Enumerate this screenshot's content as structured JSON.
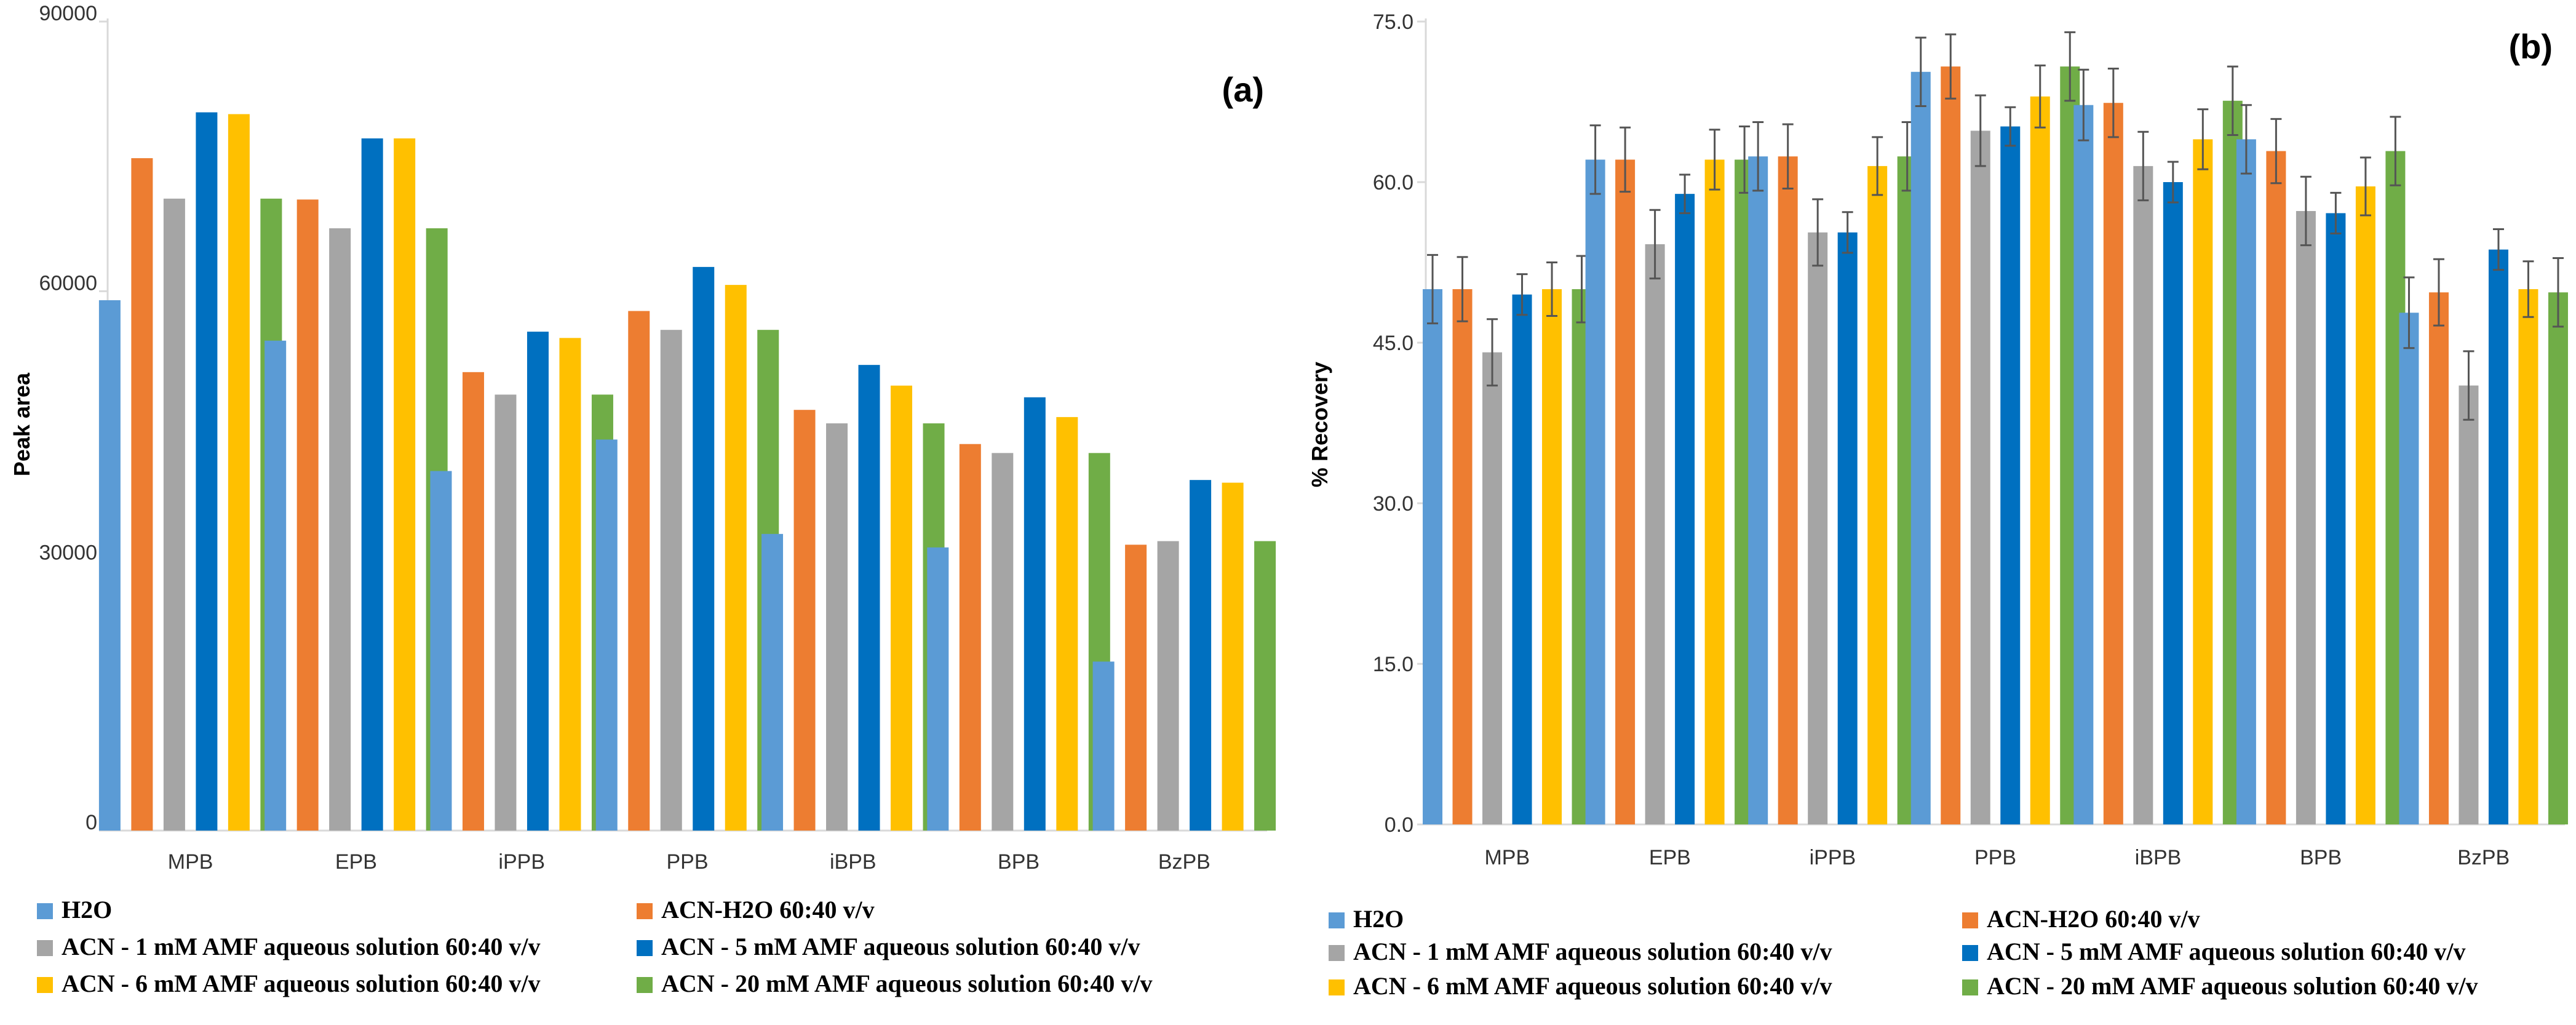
{
  "colors": {
    "H2O": "#5B9BD5",
    "ACN-H2O": "#ED7D31",
    "ACN-1mM": "#A5A5A5",
    "ACN-5mM": "#0070C0",
    "ACN-6mM": "#FFC000",
    "ACN-20mM": "#70AD47",
    "axis": "#d9d9d9",
    "errorbar": "#555555"
  },
  "legend": [
    "H2O",
    "ACN-H2O 60:40 v/v",
    "ACN - 1 mM AMF aqueous solution 60:40 v/v",
    "ACN - 5 mM AMF aqueous solution 60:40 v/v",
    "ACN - 6 mM AMF aqueous solution 60:40 v/v",
    "ACN - 20 mM AMF aqueous solution 60:40 v/v"
  ],
  "chart_data": [
    {
      "type": "bar",
      "panel_label": "(a)",
      "title": "",
      "xlabel": "",
      "ylabel": "Peak area",
      "ylim": [
        0,
        90000
      ],
      "yticks": [
        0,
        30000,
        60000,
        90000
      ],
      "ytick_labels": [
        "0",
        "30000",
        "60000",
        "90000"
      ],
      "categories": [
        "MPB",
        "EPB",
        "iPPB",
        "PPB",
        "iBPB",
        "BPB",
        "BzPB"
      ],
      "series": [
        {
          "name": "H2O",
          "color_key": "H2O",
          "values": [
            59000,
            54500,
            40000,
            43500,
            33000,
            31500,
            18800
          ]
        },
        {
          "name": "ACN-H2O 60:40 v/v",
          "color_key": "ACN-H2O",
          "values": [
            74800,
            70200,
            51000,
            57800,
            46800,
            43000,
            31800
          ]
        },
        {
          "name": "ACN - 1 mM AMF aqueous solution 60:40 v/v",
          "color_key": "ACN-1mM",
          "values": [
            70300,
            67000,
            48500,
            55700,
            45300,
            42000,
            32200
          ]
        },
        {
          "name": "ACN - 5 mM AMF aqueous solution 60:40 v/v",
          "color_key": "ACN-5mM",
          "values": [
            79900,
            77000,
            55500,
            62700,
            51800,
            48200,
            39000
          ]
        },
        {
          "name": "ACN - 6 mM AMF aqueous solution 60:40 v/v",
          "color_key": "ACN-6mM",
          "values": [
            79700,
            77000,
            54800,
            60700,
            49500,
            46000,
            38700
          ]
        },
        {
          "name": "ACN - 20 mM AMF aqueous solution 60:40 v/v",
          "color_key": "ACN-20mM",
          "values": [
            70300,
            67000,
            48500,
            55700,
            45300,
            42000,
            32200
          ]
        }
      ]
    },
    {
      "type": "bar",
      "panel_label": "(b)",
      "title": "",
      "xlabel": "",
      "ylabel": "% Recovery",
      "ylim": [
        0,
        75
      ],
      "yticks": [
        0,
        15,
        30,
        45,
        60,
        75
      ],
      "ytick_labels": [
        "0.0",
        "15.0",
        "30.0",
        "45.0",
        "60.0",
        "75.0"
      ],
      "categories": [
        "MPB",
        "EPB",
        "iPPB",
        "PPB",
        "iBPB",
        "BPB",
        "BzPB"
      ],
      "series": [
        {
          "name": "H2O",
          "color_key": "H2O",
          "values": [
            50.0,
            62.1,
            62.4,
            70.3,
            67.2,
            64.0,
            47.8
          ],
          "errors": [
            3.2,
            3.2,
            3.2,
            3.2,
            3.3,
            3.2,
            3.3
          ]
        },
        {
          "name": "ACN-H2O 60:40 v/v",
          "color_key": "ACN-H2O",
          "values": [
            50.0,
            62.1,
            62.4,
            70.8,
            67.4,
            62.9,
            49.7
          ],
          "errors": [
            3.0,
            3.0,
            3.0,
            3.0,
            3.2,
            3.0,
            3.1
          ]
        },
        {
          "name": "ACN - 1 mM AMF aqueous solution 60:40 v/v",
          "color_key": "ACN-1mM",
          "values": [
            44.1,
            54.2,
            55.3,
            64.8,
            61.5,
            57.3,
            41.0
          ],
          "errors": [
            3.1,
            3.2,
            3.1,
            3.3,
            3.2,
            3.2,
            3.2
          ]
        },
        {
          "name": "ACN - 5 mM AMF aqueous solution 60:40 v/v",
          "color_key": "ACN-5mM",
          "values": [
            49.5,
            58.9,
            55.3,
            65.2,
            60.0,
            57.1,
            53.7
          ],
          "errors": [
            1.9,
            1.8,
            1.9,
            1.8,
            1.9,
            1.9,
            1.9
          ]
        },
        {
          "name": "ACN - 6 mM AMF aqueous solution 60:40 v/v",
          "color_key": "ACN-6mM",
          "values": [
            50.0,
            62.1,
            61.5,
            68.0,
            64.0,
            59.6,
            50.0
          ],
          "errors": [
            2.5,
            2.8,
            2.7,
            2.9,
            2.8,
            2.7,
            2.6
          ]
        },
        {
          "name": "ACN - 20 mM AMF aqueous solution 60:40 v/v",
          "color_key": "ACN-20mM",
          "values": [
            50.0,
            62.1,
            62.4,
            70.8,
            67.6,
            62.9,
            49.7
          ],
          "errors": [
            3.1,
            3.1,
            3.2,
            3.2,
            3.2,
            3.2,
            3.2
          ]
        }
      ]
    }
  ]
}
